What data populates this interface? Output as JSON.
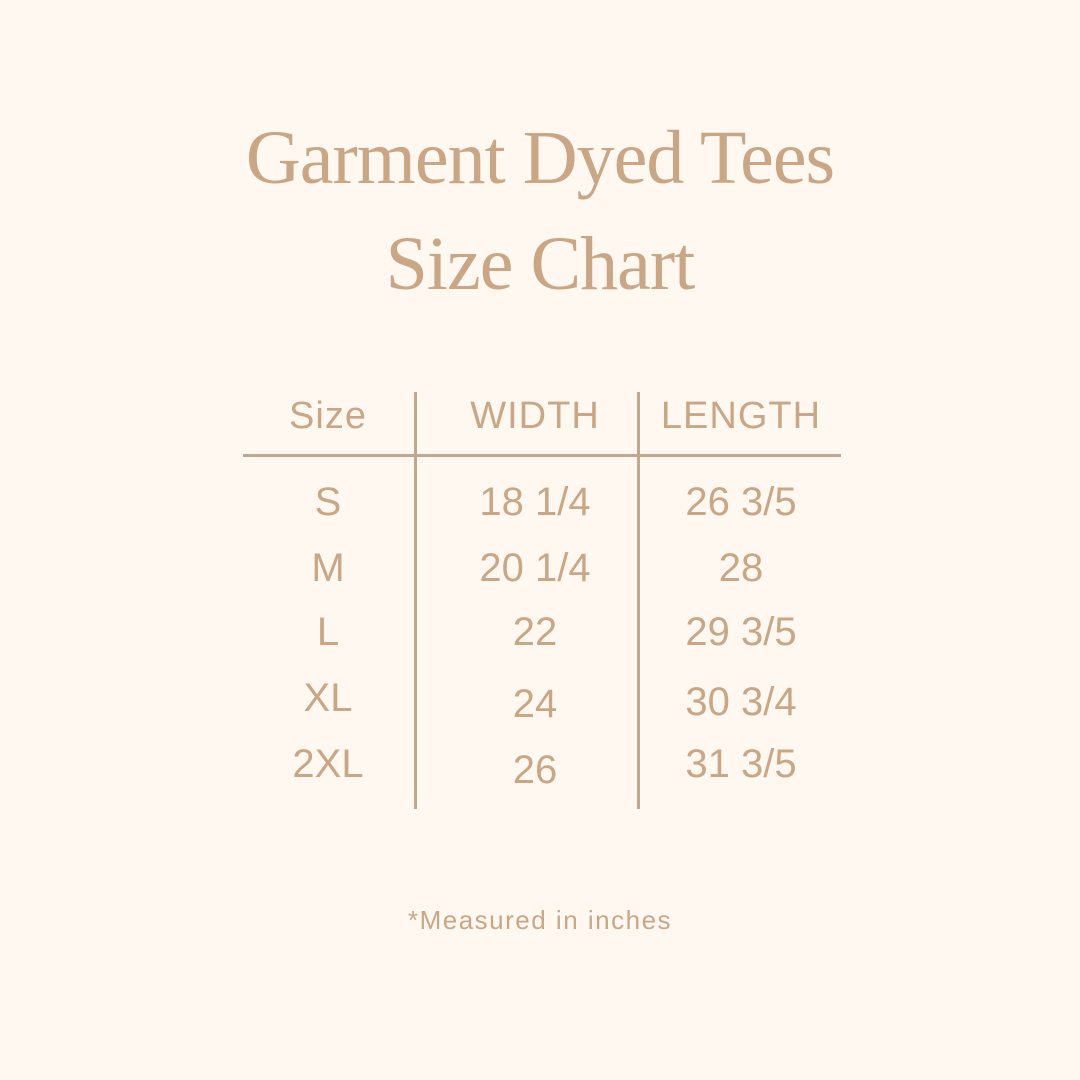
{
  "title_line1": "Garment Dyed Tees",
  "title_line2": "Size Chart",
  "colors": {
    "background": "#fef8f0",
    "text": "#c9a786",
    "rules": "#bfa890"
  },
  "table": {
    "headers": [
      "Size",
      "WIDTH",
      "LENGTH"
    ],
    "rows": [
      [
        "S",
        "18 1/4",
        "26 3/5"
      ],
      [
        "M",
        "20 1/4",
        "28"
      ],
      [
        "L",
        "22",
        "29 3/5"
      ],
      [
        "XL",
        "24",
        "30 3/4"
      ],
      [
        "2XL",
        "26",
        "31 3/5"
      ]
    ]
  },
  "footnote": "*Measured in inches"
}
